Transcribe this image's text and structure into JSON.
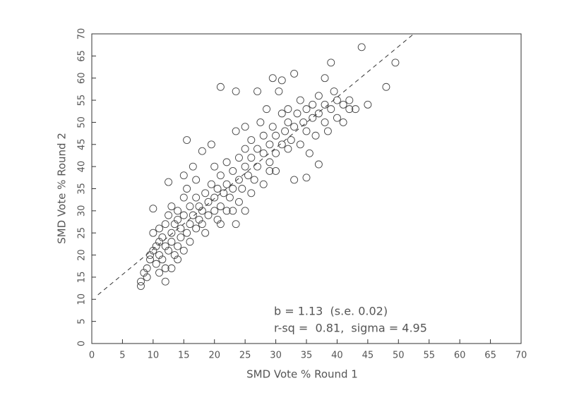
{
  "chart_data": {
    "type": "scatter",
    "xlabel": "SMD Vote % Round 1",
    "ylabel": "SMD Vote % Round 2",
    "annotations": [
      "b = 1.13  (s.e. 0.02)",
      "r-sq =  0.81,  sigma = 4.95"
    ],
    "xlim": [
      0,
      70
    ],
    "ylim": [
      0,
      70
    ],
    "xticks": [
      0,
      5,
      10,
      15,
      20,
      25,
      30,
      35,
      40,
      45,
      50,
      55,
      60,
      65,
      70
    ],
    "yticks": [
      0,
      5,
      10,
      15,
      20,
      25,
      30,
      35,
      40,
      45,
      50,
      55,
      60,
      65,
      70
    ],
    "color": "#444444",
    "x": [
      8,
      8,
      8.5,
      9,
      9,
      9.5,
      9.5,
      10,
      10,
      10,
      10.5,
      10.5,
      11,
      11,
      11,
      11,
      11.5,
      11.5,
      12,
      12,
      12,
      12,
      12.5,
      12.5,
      12.5,
      13,
      13,
      13,
      13,
      13.5,
      13.5,
      14,
      14,
      14,
      14,
      14.5,
      14.5,
      15,
      15,
      15,
      15,
      15.5,
      15.5,
      15.5,
      16,
      16,
      16,
      16.5,
      16.5,
      17,
      17,
      17,
      17.5,
      17.5,
      18,
      18,
      18,
      18.5,
      18.5,
      19,
      19,
      19.5,
      19.5,
      20,
      20,
      20,
      20.5,
      20.5,
      21,
      21,
      21,
      21,
      21.5,
      22,
      22,
      22,
      22.5,
      23,
      23,
      23,
      23.5,
      23.5,
      23.5,
      24,
      24,
      24,
      24.5,
      25,
      25,
      25,
      25,
      25.5,
      26,
      26,
      26,
      26.5,
      27,
      27,
      27,
      27.5,
      28,
      28,
      28,
      28.5,
      29,
      29,
      29,
      29.5,
      29.5,
      30,
      30,
      30,
      30.5,
      31,
      31,
      31,
      31.5,
      32,
      32,
      32,
      32.5,
      33,
      33,
      33,
      33.5,
      34,
      34,
      34.5,
      35,
      35,
      35,
      35.5,
      36,
      36,
      36.5,
      37,
      37,
      37,
      38,
      38,
      38,
      38.5,
      39,
      39,
      39.5,
      40,
      40,
      41,
      41,
      42,
      42,
      43,
      44,
      45,
      48,
      49.5
    ],
    "y": [
      13,
      14,
      16,
      15,
      17,
      19,
      20,
      30.5,
      21,
      25,
      18,
      22,
      20,
      23,
      26,
      16,
      19,
      24,
      22,
      27,
      14,
      17,
      36.5,
      21,
      29,
      23,
      25,
      31,
      17,
      20,
      27,
      22,
      28,
      30,
      19,
      24,
      26,
      29,
      33,
      21,
      38,
      46,
      25,
      35,
      27,
      31,
      23,
      40,
      29,
      26,
      33,
      37,
      28,
      31,
      30,
      43.5,
      27,
      34,
      25,
      32,
      29,
      45,
      36,
      30,
      33,
      40,
      28,
      35,
      58,
      27,
      31,
      38,
      34,
      30,
      36,
      41,
      33,
      35,
      39,
      30,
      57,
      48,
      27,
      37,
      42,
      32,
      35,
      40,
      44,
      49,
      30,
      38,
      34,
      42,
      46,
      37,
      57,
      40,
      44,
      50,
      36,
      43,
      47,
      53,
      39,
      45,
      41,
      60,
      49,
      43,
      47,
      39,
      57,
      59.5,
      45,
      52,
      48,
      44,
      50,
      53,
      46,
      61,
      37,
      49,
      52,
      45,
      55,
      50,
      37.5,
      48,
      53,
      43,
      51,
      54,
      47,
      40.5,
      52,
      56,
      60,
      50,
      54,
      48,
      63.5,
      53,
      57,
      51,
      55,
      50,
      54,
      53,
      55,
      53,
      67,
      54,
      58,
      63.5
    ],
    "fit_line": {
      "x": [
        1,
        52.5
      ],
      "y": [
        11,
        70
      ]
    }
  }
}
